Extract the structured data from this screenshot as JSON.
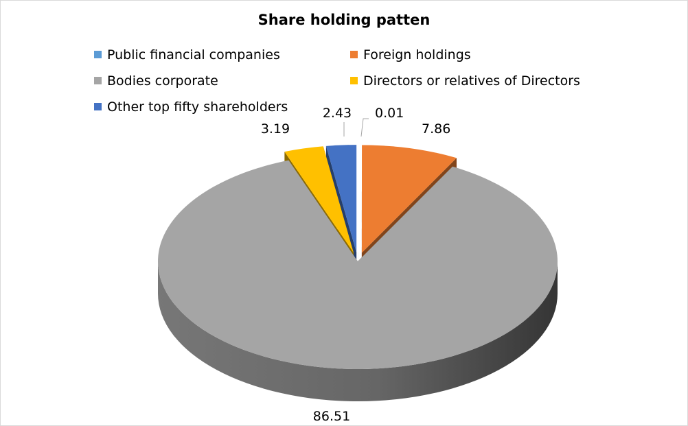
{
  "chart_data": {
    "type": "pie",
    "title": "Share holding patten",
    "slices": [
      {
        "name": "Public financial companies",
        "value": 0.01,
        "label": "0.01",
        "color": "#5B9BD5"
      },
      {
        "name": "Foreign holdings",
        "value": 7.86,
        "label": "7.86",
        "color": "#ED7D31"
      },
      {
        "name": "Bodies corporate",
        "value": 86.51,
        "label": "86.51",
        "color": "#A5A5A5"
      },
      {
        "name": "Directors or relatives of Directors",
        "value": 3.19,
        "label": "3.19",
        "color": "#FFC000"
      },
      {
        "name": "Other top fifty shareholders",
        "value": 2.43,
        "label": "2.43",
        "color": "#4472C4"
      }
    ],
    "legend_position": "top",
    "style": "3d-exploded"
  }
}
